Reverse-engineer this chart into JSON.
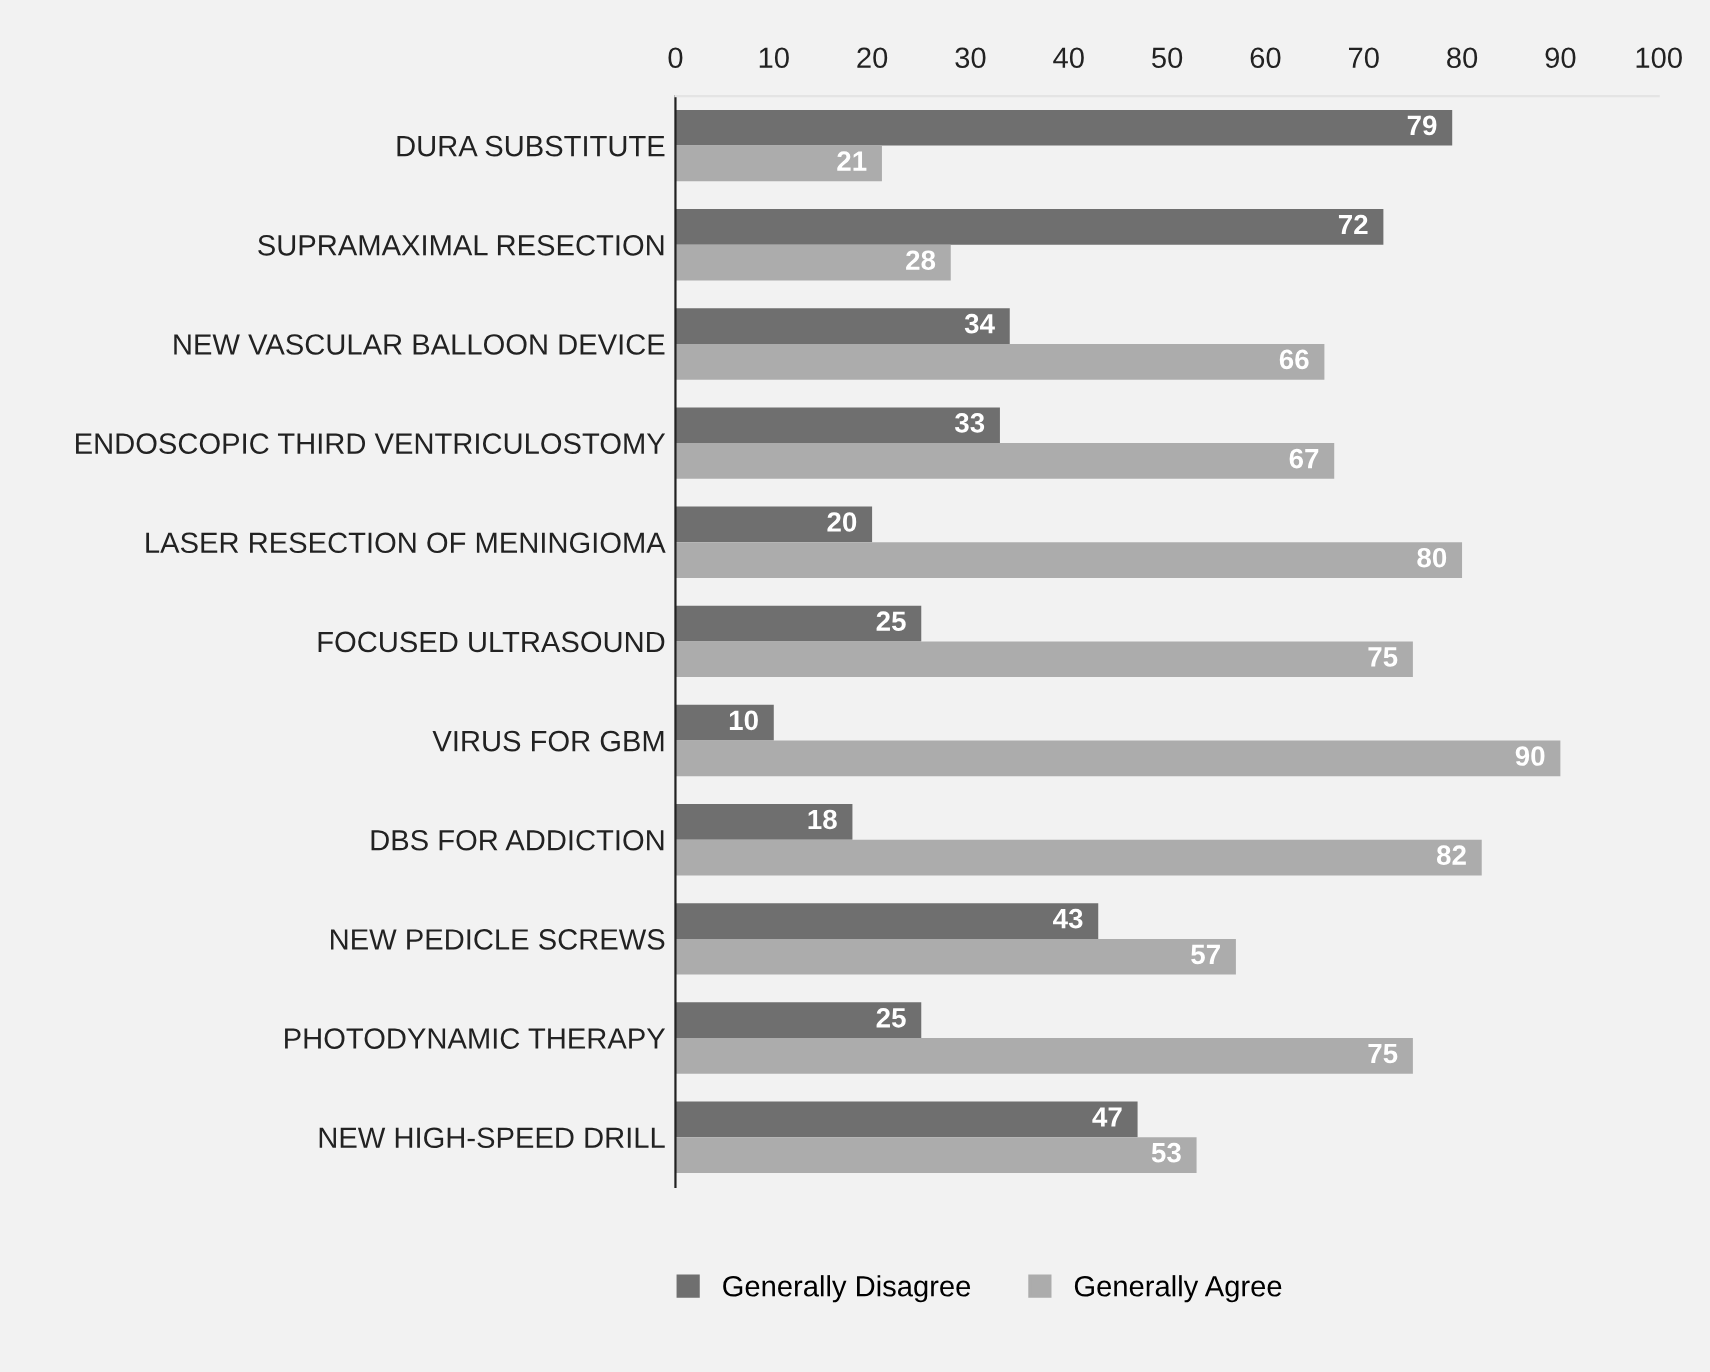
{
  "chart_data": {
    "type": "bar",
    "orientation": "horizontal",
    "categories": [
      "DURA SUBSTITUTE",
      "SUPRAMAXIMAL RESECTION",
      "NEW VASCULAR BALLOON DEVICE",
      "ENDOSCOPIC THIRD VENTRICULOSTOMY",
      "LASER RESECTION OF MENINGIOMA",
      "FOCUSED ULTRASOUND",
      "VIRUS FOR GBM",
      "DBS FOR ADDICTION",
      "NEW PEDICLE SCREWS",
      "PHOTODYNAMIC THERAPY",
      "NEW HIGH-SPEED DRILL"
    ],
    "series": [
      {
        "name": "Generally Disagree",
        "color": "#6f6f6f",
        "values": [
          79,
          72,
          34,
          33,
          20,
          25,
          10,
          18,
          43,
          25,
          47
        ]
      },
      {
        "name": "Generally Agree",
        "color": "#acacac",
        "values": [
          21,
          28,
          66,
          67,
          80,
          75,
          90,
          82,
          57,
          75,
          53
        ]
      }
    ],
    "xlim": [
      0,
      100
    ],
    "xticks": [
      0,
      10,
      20,
      30,
      40,
      50,
      60,
      70,
      80,
      90,
      100
    ],
    "data_labels": true,
    "legend": "bottom",
    "grid": false
  }
}
